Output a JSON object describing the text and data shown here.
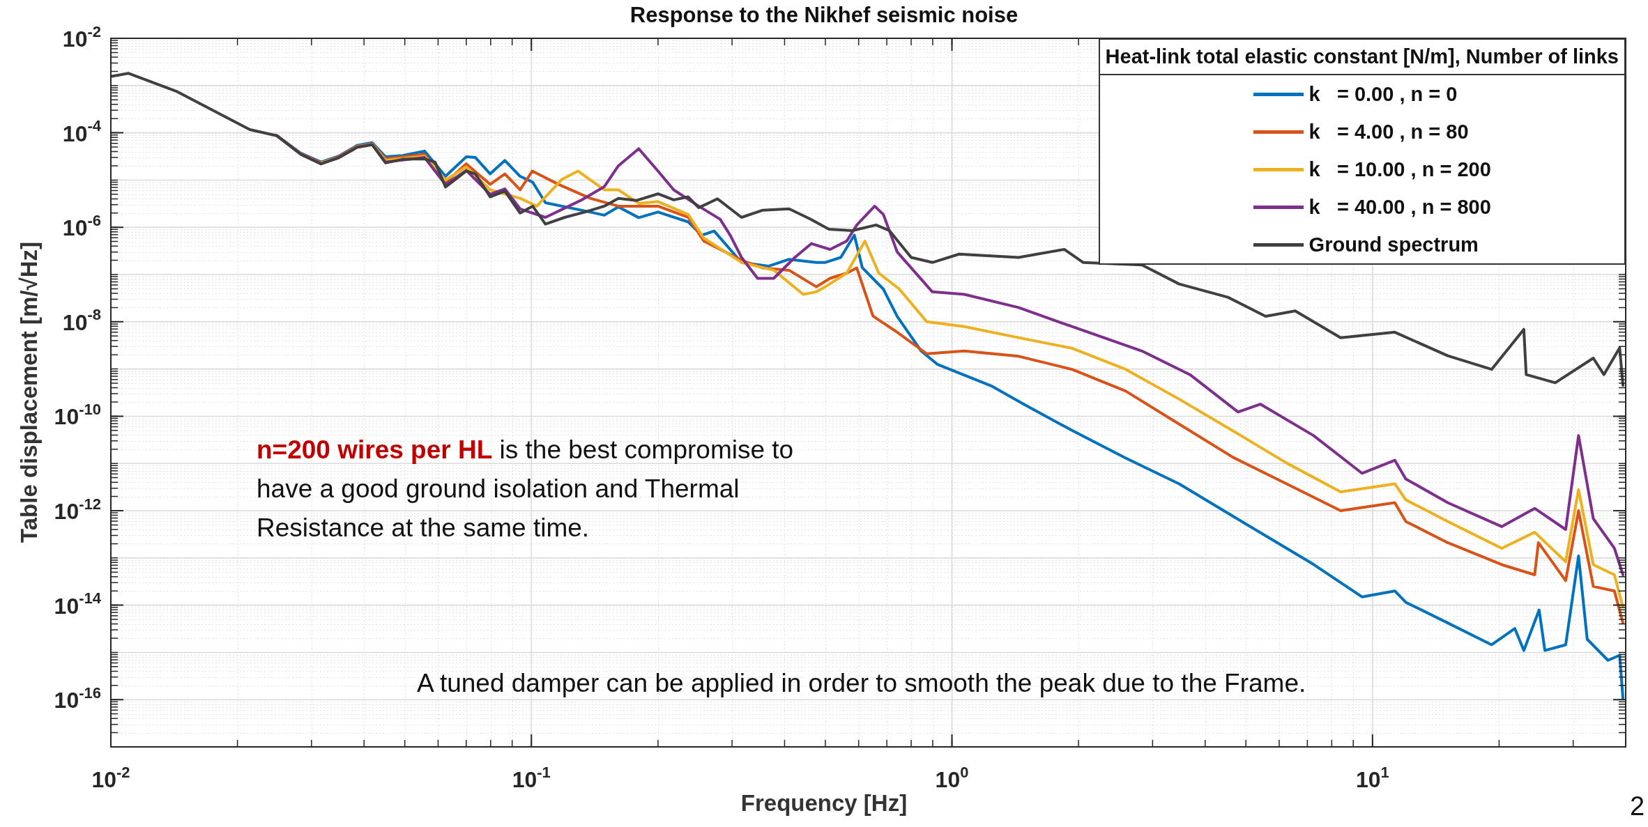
{
  "chart_data": {
    "type": "line",
    "title": "Response to the Nikhef seismic noise",
    "xlabel": "Frequency [Hz]",
    "ylabel": "Table displacement [m/√Hz]",
    "legend_title": "Heat-link total elastic constant [N/m], Number of links",
    "log": "xy",
    "grid": true,
    "legend": "top right",
    "marker": "none",
    "line_style": "solid",
    "xlim": [
      0.01,
      40
    ],
    "ylim": [
      1e-17,
      0.01
    ],
    "xticks": [
      {
        "value": 0.01,
        "label": "10$^{-2}$"
      },
      {
        "value": 0.1,
        "label": "10$^{-1}$"
      },
      {
        "value": 1,
        "label": "10$^{0}$"
      },
      {
        "value": 10,
        "label": "10$^{1}$"
      }
    ],
    "yticks": [
      {
        "value": 1e-16,
        "label": "10$^{-16}$"
      },
      {
        "value": 1e-14,
        "label": "10$^{-14}$"
      },
      {
        "value": 1e-12,
        "label": "10$^{-12}$"
      },
      {
        "value": 1e-10,
        "label": "10$^{-10}$"
      },
      {
        "value": 1e-08,
        "label": "10$^{-8}$"
      },
      {
        "value": 1e-06,
        "label": "10$^{-6}$"
      },
      {
        "value": 0.0001,
        "label": "10$^{-4}$"
      },
      {
        "value": 0.01,
        "label": "10$^{-2}$"
      }
    ],
    "annotations": [
      "n=200 wires per HL",
      "is the best compromise to have a good ground isolation and Thermal Resistance at the same time.",
      "A tuned damper can be applied in order to smooth the peak due to the Frame.",
      "2"
    ],
    "series": [
      {
        "name": "k   = 0.00 , n = 0",
        "color": "#0072bd",
        "x": [
          0.0248,
          0.0283,
          0.0316,
          0.0348,
          0.0385,
          0.0418,
          0.045,
          0.0494,
          0.0557,
          0.0625,
          0.07,
          0.0736,
          0.0798,
          0.0865,
          0.094,
          0.1007,
          0.108,
          0.138,
          0.149,
          0.161,
          0.18,
          0.2,
          0.236,
          0.254,
          0.272,
          0.316,
          0.366,
          0.41,
          0.476,
          0.5,
          0.544,
          0.586,
          0.612,
          0.687,
          0.741,
          0.845,
          0.923,
          1.24,
          1.48,
          1.93,
          2.59,
          3.47,
          4.66,
          6.25,
          7.24,
          9.44,
          11.3,
          12.0,
          15.1,
          19.2,
          21.8,
          22.9,
          24.9,
          25.7,
          28.8,
          30.9,
          32.4,
          36.3,
          38.7,
          39.4
        ],
        "values": [
          8.7e-05,
          3.7e-05,
          2.4e-05,
          3.2e-05,
          5.4e-05,
          6.2e-05,
          3.1e-05,
          3.3e-05,
          4.1e-05,
          1.2e-05,
          3.1e-05,
          3e-05,
          1.35e-05,
          2.6e-05,
          1.2e-05,
          9e-06,
          3.3e-06,
          2.1e-06,
          1.8e-06,
          2.7e-06,
          1.6e-06,
          2.1e-06,
          1.3e-06,
          6.8e-07,
          8.3e-07,
          1.8e-07,
          1.5e-07,
          2.1e-07,
          1.8e-07,
          1.8e-07,
          2.3e-07,
          6.8e-07,
          1.4e-07,
          4.9e-08,
          1.3e-08,
          2.4e-09,
          1.26e-09,
          4.4e-10,
          1.8e-10,
          5e-11,
          1.3e-11,
          3.7e-12,
          7.6e-13,
          1.6e-13,
          7.3e-14,
          1.5e-14,
          2e-14,
          1.15e-14,
          4.2e-15,
          1.45e-15,
          3.2e-15,
          1.1e-15,
          7.9e-15,
          1.1e-15,
          1.45e-15,
          1.1e-13,
          1.9e-15,
          6.8e-16,
          8.7e-16,
          1.07e-16
        ]
      },
      {
        "name": "k   = 4.00 , n = 80",
        "color": "#d95319",
        "x": [
          0.0248,
          0.0283,
          0.0316,
          0.0348,
          0.0385,
          0.0418,
          0.045,
          0.0557,
          0.0625,
          0.07,
          0.0798,
          0.0865,
          0.094,
          0.1005,
          0.116,
          0.138,
          0.161,
          0.2,
          0.236,
          0.257,
          0.316,
          0.355,
          0.41,
          0.476,
          0.513,
          0.562,
          0.594,
          0.649,
          0.741,
          0.871,
          1.07,
          1.44,
          1.93,
          2.59,
          3.47,
          4.66,
          6.25,
          8.4,
          11.3,
          12.0,
          15.1,
          20.3,
          24.3,
          24.8,
          28.8,
          30.9,
          33.5,
          37.6,
          39.4
        ],
        "values": [
          8.7e-05,
          3.6e-05,
          2.3e-05,
          3.1e-05,
          5.2e-05,
          5.9e-05,
          2.8e-05,
          3.5e-05,
          8.9e-06,
          2.2e-05,
          8.1e-06,
          1.35e-05,
          6.2e-06,
          1.55e-05,
          8.1e-06,
          4.1e-06,
          2.8e-06,
          2.8e-06,
          1.62e-06,
          5.1e-07,
          2e-07,
          1.38e-07,
          1.23e-07,
          5.5e-08,
          8.3e-08,
          1.07e-07,
          1.38e-07,
          1.32e-08,
          6e-09,
          2.1e-09,
          2.4e-09,
          1.86e-09,
          9.8e-10,
          3.4e-10,
          6.8e-11,
          1.35e-11,
          3.7e-12,
          1e-12,
          1.48e-12,
          5.9e-13,
          2.1e-13,
          7.2e-14,
          4.4e-14,
          2.1e-13,
          3.3e-14,
          1e-12,
          2.5e-14,
          2e-14,
          4.2e-15
        ]
      },
      {
        "name": "k   = 10.00 , n = 200",
        "color": "#edb120",
        "x": [
          0.0316,
          0.0348,
          0.0385,
          0.0418,
          0.045,
          0.0557,
          0.0625,
          0.07,
          0.0798,
          0.094,
          0.103,
          0.118,
          0.129,
          0.149,
          0.161,
          0.18,
          0.2,
          0.236,
          0.257,
          0.316,
          0.377,
          0.443,
          0.476,
          0.5,
          0.562,
          0.621,
          0.67,
          0.75,
          0.871,
          1.07,
          1.44,
          1.93,
          2.59,
          3.47,
          4.66,
          6.25,
          8.4,
          11.3,
          12.0,
          15.1,
          20.3,
          24.3,
          28.8,
          30.9,
          33.5,
          37.6,
          39.4
        ],
        "values": [
          2.3e-05,
          3e-05,
          5.1e-05,
          5.8e-05,
          2.6e-05,
          3.2e-05,
          1e-05,
          1.9e-05,
          6.2e-06,
          4.1e-06,
          2.8e-06,
          1.02e-05,
          1.55e-05,
          6.2e-06,
          6.2e-06,
          3.2e-06,
          3.5e-06,
          1.86e-06,
          5.9e-07,
          1.8e-07,
          1.23e-07,
          3.8e-08,
          4.3e-08,
          5.5e-08,
          1.07e-07,
          5.1e-07,
          1.07e-07,
          4.9e-08,
          1e-08,
          7.9e-09,
          4.6e-09,
          2.75e-09,
          9.8e-10,
          2.3e-10,
          4.9e-11,
          1.02e-11,
          2.5e-12,
          3.7e-12,
          1.7e-12,
          5.9e-13,
          1.6e-13,
          3.5e-13,
          8.3e-14,
          2.8e-12,
          7.2e-14,
          4.4e-14,
          9.1e-15
        ]
      },
      {
        "name": "k   = 40.00 , n = 800",
        "color": "#7e2f8e",
        "x": [
          0.0248,
          0.0283,
          0.0316,
          0.0348,
          0.0385,
          0.0418,
          0.045,
          0.0557,
          0.0625,
          0.07,
          0.0798,
          0.0865,
          0.094,
          0.108,
          0.131,
          0.149,
          0.161,
          0.18,
          0.2,
          0.218,
          0.25,
          0.281,
          0.297,
          0.316,
          0.345,
          0.377,
          0.423,
          0.463,
          0.513,
          0.562,
          0.594,
          0.655,
          0.687,
          0.741,
          0.898,
          1.07,
          1.44,
          1.93,
          2.83,
          3.68,
          4.79,
          5.41,
          7.24,
          9.44,
          11.3,
          12.0,
          15.1,
          20.3,
          24.3,
          28.8,
          30.9,
          33.5,
          37.6,
          39.4
        ],
        "values": [
          8.7e-05,
          3.5e-05,
          2.2e-05,
          3e-05,
          5e-05,
          5.7e-05,
          2.4e-05,
          3e-05,
          8e-06,
          1.6e-05,
          5e-06,
          6.5e-06,
          2.45e-06,
          1.62e-06,
          3.7e-06,
          7.2e-06,
          2e-05,
          4.6e-05,
          1.55e-05,
          6.2e-06,
          2.8e-06,
          1.48e-06,
          6.8e-07,
          2.3e-07,
          8.3e-08,
          8.3e-08,
          2.3e-07,
          4.5e-07,
          3.4e-07,
          5.1e-07,
          1.12e-06,
          2.8e-06,
          1.86e-06,
          3e-07,
          4.3e-08,
          3.8e-08,
          2e-08,
          7.9e-09,
          2.4e-09,
          7.6e-10,
          1.23e-10,
          1.8e-10,
          3.9e-11,
          6.2e-12,
          1.17e-11,
          4.7e-12,
          1.48e-12,
          4.6e-13,
          1.12e-12,
          4e-13,
          3.9e-11,
          6.8e-13,
          1.6e-13,
          4.4e-14
        ]
      },
      {
        "name": "Ground spectrum",
        "color": "#404040",
        "x": [
          0.01,
          0.011,
          0.0144,
          0.0214,
          0.0248,
          0.0283,
          0.0316,
          0.0348,
          0.0385,
          0.0418,
          0.045,
          0.0494,
          0.0557,
          0.059,
          0.0625,
          0.07,
          0.0736,
          0.0798,
          0.0865,
          0.094,
          0.1007,
          0.108,
          0.12,
          0.134,
          0.149,
          0.161,
          0.178,
          0.2,
          0.218,
          0.236,
          0.25,
          0.277,
          0.316,
          0.355,
          0.41,
          0.46,
          0.51,
          0.58,
          0.66,
          0.71,
          0.8,
          0.9,
          1.04,
          1.44,
          1.85,
          2.05,
          2.83,
          3.47,
          4.53,
          5.57,
          6.55,
          8.4,
          11.3,
          15.1,
          19.2,
          22.9,
          23.2,
          27.2,
          33.5,
          35.5,
          38.7,
          39.4
        ],
        "values": [
          0.00155,
          0.00182,
          0.00074,
          0.000117,
          8.7e-05,
          3.5e-05,
          2.2e-05,
          2.95e-05,
          4.9e-05,
          5.6e-05,
          2.3e-05,
          2.75e-05,
          2.8e-05,
          2.4e-05,
          7.1e-06,
          1.55e-05,
          1.35e-05,
          4.4e-06,
          5.8e-06,
          2e-06,
          2.8e-06,
          1.17e-06,
          1.62e-06,
          2.1e-06,
          2.8e-06,
          4.1e-06,
          3.7e-06,
          5.1e-06,
          3.8e-06,
          4.4e-06,
          2.6e-06,
          4e-06,
          1.62e-06,
          2.3e-06,
          2.45e-06,
          1.5e-06,
          9.1e-07,
          8.5e-07,
          1.12e-06,
          8.5e-07,
          2.3e-07,
          1.8e-07,
          2.7e-07,
          2.3e-07,
          3.4e-07,
          1.8e-07,
          1.6e-07,
          6.3e-08,
          3.3e-08,
          1.3e-08,
          1.7e-08,
          4.6e-09,
          6e-09,
          1.9e-09,
          9.8e-10,
          6.9e-09,
          7.6e-10,
          5.1e-10,
          1.7e-09,
          7.6e-10,
          2.8e-09,
          4.5e-10
        ]
      }
    ]
  }
}
